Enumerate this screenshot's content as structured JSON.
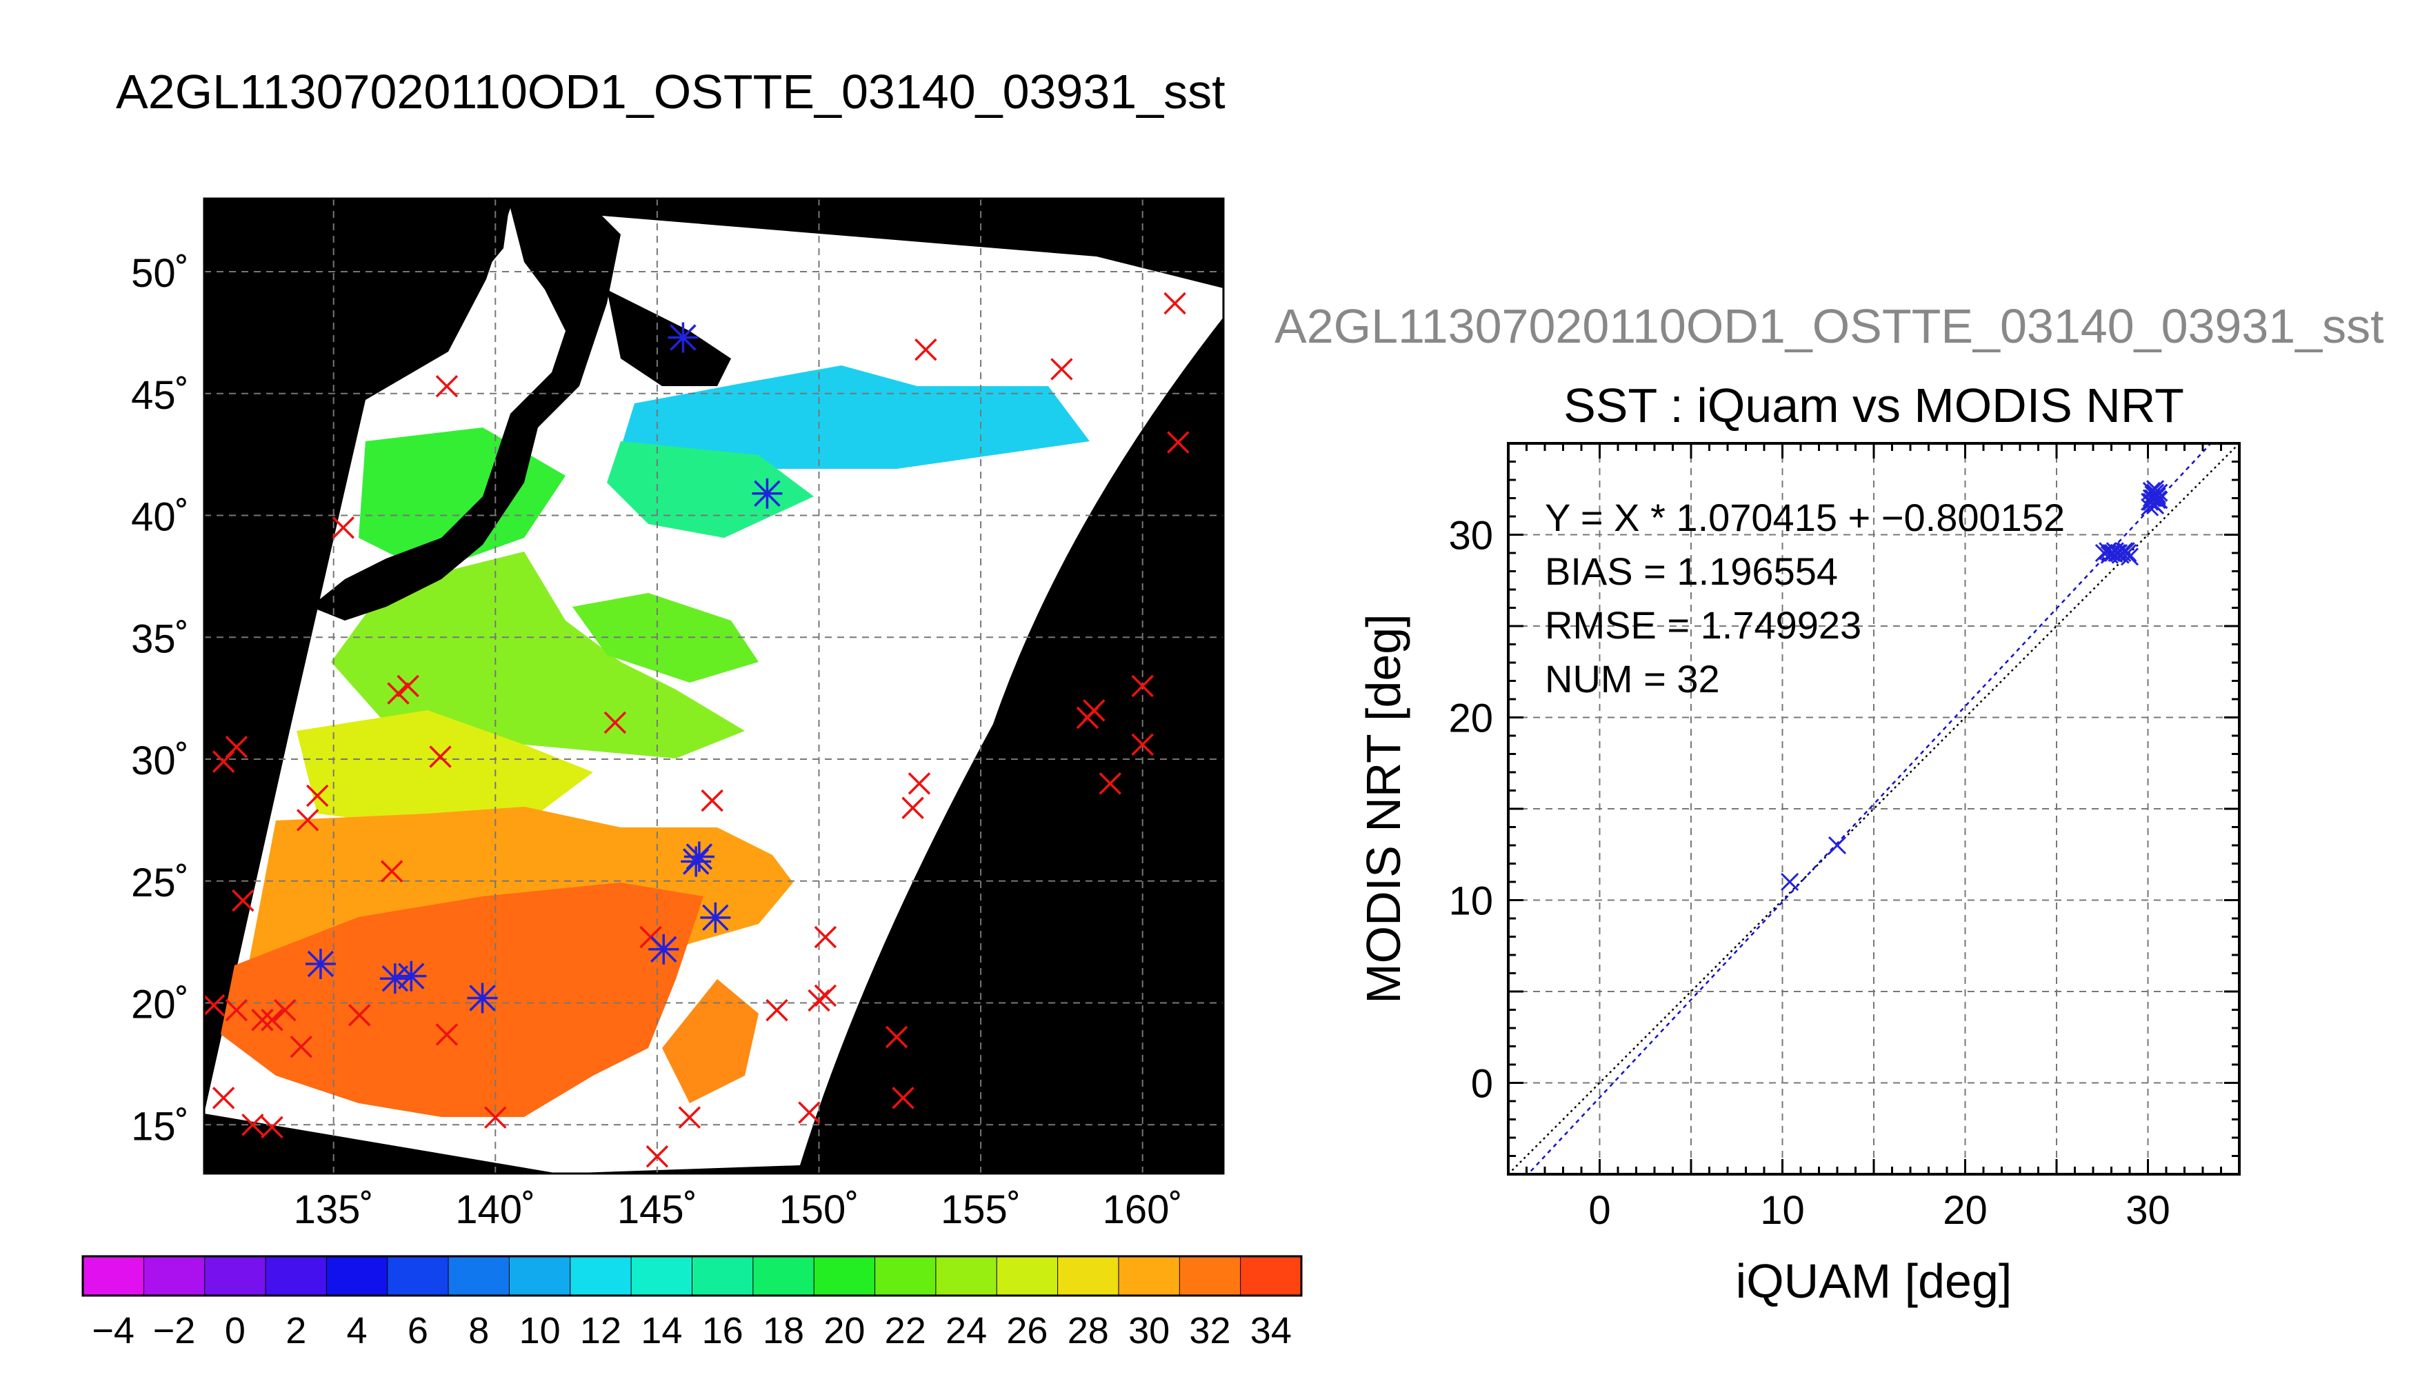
{
  "main_title": "A2GL11307020110OD1_OSTTE_03140_03931_sst",
  "scatter_title_gray": "A2GL11307020110OD1_OSTTE_03140_03931_sst",
  "map": {
    "lat_ticks": [
      "50˚",
      "45˚",
      "40˚",
      "35˚",
      "30˚",
      "25˚",
      "20˚",
      "15˚"
    ],
    "lat_values": [
      50,
      45,
      40,
      35,
      30,
      25,
      20,
      15
    ],
    "lon_ticks": [
      "135˚",
      "140˚",
      "145˚",
      "150˚",
      "155˚",
      "160˚"
    ],
    "lon_values": [
      135,
      140,
      145,
      150,
      155,
      160
    ],
    "lon_range": [
      131,
      162.5
    ],
    "lat_range": [
      13,
      53
    ],
    "land_color": "#000000",
    "cloud_color": "#ffffff"
  },
  "colorbar": {
    "labels": [
      "−4",
      "−2",
      "0",
      "2",
      "4",
      "6",
      "8",
      "10",
      "12",
      "14",
      "16",
      "18",
      "20",
      "22",
      "24",
      "26",
      "28",
      "30",
      "32",
      "34"
    ],
    "colors": [
      "#e011ee",
      "#aa11ee",
      "#7711ee",
      "#4411ee",
      "#1111ee",
      "#1144ee",
      "#1177ee",
      "#11aaee",
      "#11ddee",
      "#11eecc",
      "#11ee99",
      "#11ee66",
      "#22ee22",
      "#66ee11",
      "#99ee11",
      "#ccee11",
      "#eedd11",
      "#ffaa11",
      "#ff7711",
      "#ff4411"
    ]
  },
  "chart_data": {
    "type": "scatter",
    "title": "SST : iQuam vs MODIS NRT",
    "xlabel": "iQUAM [deg]",
    "ylabel": "MODIS NRT [deg]",
    "xlim": [
      -5,
      35
    ],
    "ylim": [
      -5,
      35
    ],
    "xticks": [
      0,
      10,
      20,
      30
    ],
    "yticks": [
      0,
      10,
      20,
      30
    ],
    "grid": true,
    "annotations": [
      "Y = X * 1.070415 + −0.800152",
      "BIAS = 1.196554",
      "RMSE = 1.749923",
      "NUM = 32"
    ],
    "fit": {
      "slope": 1.070415,
      "intercept": -0.800152
    },
    "identity_line": true,
    "series": [
      {
        "x": [
          10.4,
          13.0,
          27.6,
          27.8,
          28.0,
          28.1,
          28.2,
          28.4,
          28.5,
          28.6,
          28.7,
          28.9,
          29.0,
          27.9,
          28.3,
          28.8,
          30.1,
          30.2,
          30.3,
          30.4,
          30.5,
          30.6,
          30.2,
          30.4,
          30.5,
          30.3,
          30.6,
          30.1,
          30.4,
          30.2,
          30.5,
          30.3
        ],
        "y": [
          11.0,
          13.0,
          29.0,
          29.1,
          29.0,
          29.0,
          29.1,
          29.0,
          28.9,
          29.0,
          29.1,
          29.0,
          28.8,
          28.9,
          29.0,
          29.1,
          31.5,
          31.8,
          32.0,
          32.3,
          32.2,
          31.9,
          32.4,
          31.6,
          32.1,
          31.7,
          32.3,
          31.8,
          32.5,
          32.0,
          31.9,
          32.2
        ]
      }
    ]
  },
  "map_markers": {
    "red": [
      [
        161,
        48.7
      ],
      [
        157.5,
        46
      ],
      [
        153.3,
        46.8
      ],
      [
        161.1,
        43
      ],
      [
        138.5,
        45.3
      ],
      [
        135.3,
        39.5
      ],
      [
        137,
        32.7
      ],
      [
        137.3,
        33
      ],
      [
        143.7,
        31.5
      ],
      [
        138.3,
        30.1
      ],
      [
        134.5,
        28.5
      ],
      [
        134.2,
        27.5
      ],
      [
        132,
        30.5
      ],
      [
        131.6,
        29.9
      ],
      [
        136.8,
        25.4
      ],
      [
        146.7,
        28.3
      ],
      [
        153.1,
        29
      ],
      [
        152.9,
        28
      ],
      [
        158.3,
        31.7
      ],
      [
        158.5,
        32
      ],
      [
        160,
        33
      ],
      [
        160,
        30.6
      ],
      [
        159,
        29
      ],
      [
        132.2,
        24.2
      ],
      [
        131.3,
        19.9
      ],
      [
        132,
        19.7
      ],
      [
        132.8,
        19.3
      ],
      [
        133.1,
        19.3
      ],
      [
        133.5,
        19.7
      ],
      [
        134,
        18.2
      ],
      [
        135.8,
        19.5
      ],
      [
        138.5,
        18.7
      ],
      [
        140,
        15.3
      ],
      [
        131.6,
        16.1
      ],
      [
        132.5,
        15
      ],
      [
        133.1,
        14.9
      ],
      [
        144.8,
        22.7
      ],
      [
        150.2,
        22.7
      ],
      [
        149.7,
        15.5
      ],
      [
        148.7,
        19.7
      ],
      [
        150.2,
        20.3
      ],
      [
        150,
        20.1
      ],
      [
        152.4,
        18.6
      ],
      [
        152.6,
        16.1
      ],
      [
        146,
        15.3
      ],
      [
        145,
        13.7
      ]
    ],
    "blue": [
      [
        145.8,
        47.3
      ],
      [
        148.4,
        40.9
      ],
      [
        146.3,
        26
      ],
      [
        146.2,
        25.8
      ],
      [
        146.8,
        23.5
      ],
      [
        145.2,
        22.2
      ],
      [
        134.6,
        21.6
      ],
      [
        136.9,
        21
      ],
      [
        137.4,
        21.1
      ],
      [
        139.6,
        20.2
      ]
    ]
  }
}
